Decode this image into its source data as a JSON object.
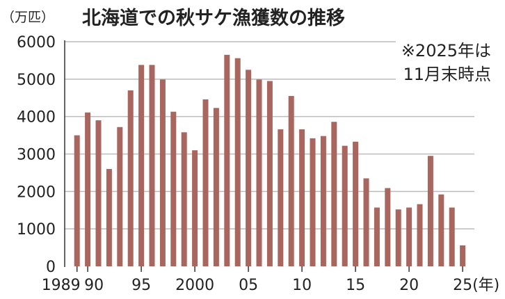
{
  "chart_data": {
    "type": "bar",
    "title": "北海道での秋サケ漁獲数の推移",
    "ylabel": "（万匹）",
    "xlabel": "(年)",
    "note": [
      "※2025年は",
      "11月末時点"
    ],
    "ylim": [
      0,
      6000
    ],
    "yticks": [
      0,
      1000,
      2000,
      3000,
      4000,
      5000,
      6000
    ],
    "grid": true,
    "bar_color": "#a8665e",
    "categories": [
      1989,
      1990,
      1991,
      1992,
      1993,
      1994,
      1995,
      1996,
      1997,
      1998,
      1999,
      2000,
      2001,
      2002,
      2003,
      2004,
      2005,
      2006,
      2007,
      2008,
      2009,
      2010,
      2011,
      2012,
      2013,
      2014,
      2015,
      2016,
      2017,
      2018,
      2019,
      2020,
      2021,
      2022,
      2023,
      2024,
      2025
    ],
    "values": [
      3500,
      4110,
      3900,
      2600,
      3720,
      4700,
      5380,
      5380,
      4990,
      4130,
      3580,
      3100,
      4460,
      4230,
      5650,
      5560,
      5250,
      4990,
      4950,
      3660,
      4550,
      3660,
      3420,
      3480,
      3860,
      3220,
      3330,
      2350,
      1570,
      2090,
      1520,
      1570,
      1660,
      2950,
      1920,
      1570,
      560
    ],
    "xtick_labels": [
      {
        "year": 1989,
        "label": "1989"
      },
      {
        "year": 1990,
        "label": "90"
      },
      {
        "year": 1995,
        "label": "95"
      },
      {
        "year": 2000,
        "label": "2000"
      },
      {
        "year": 2005,
        "label": "05"
      },
      {
        "year": 2010,
        "label": "10"
      },
      {
        "year": 2015,
        "label": "15"
      },
      {
        "year": 2020,
        "label": "20"
      },
      {
        "year": 2025,
        "label": "25"
      }
    ]
  }
}
